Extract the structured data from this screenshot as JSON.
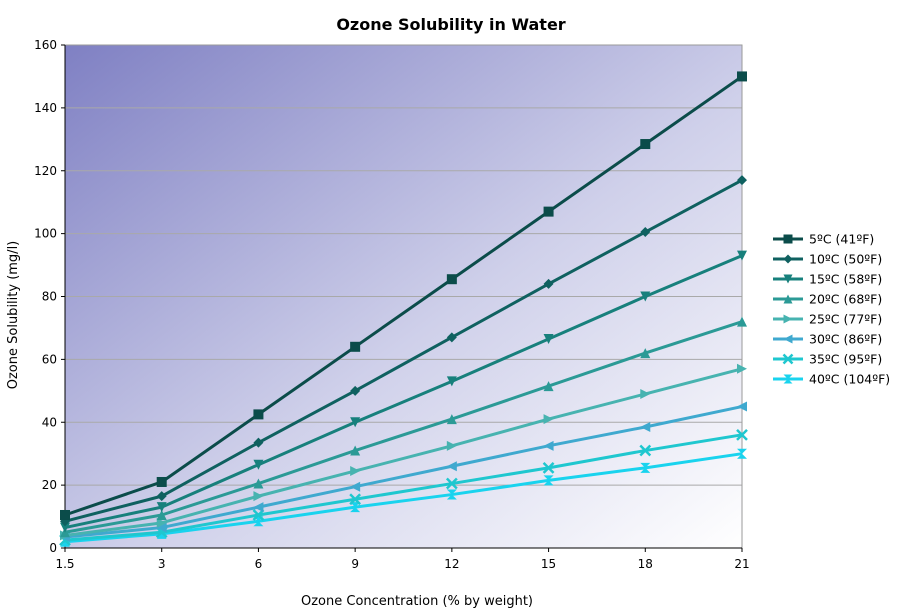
{
  "chart_data": {
    "type": "line",
    "title": "Ozone Solubility in Water",
    "xlabel": "Ozone Concentration (% by weight)",
    "ylabel": "Ozone Solubility (mg/l)",
    "categories": [
      "1.5",
      "3",
      "6",
      "9",
      "12",
      "15",
      "18",
      "21"
    ],
    "ylim": [
      0,
      160
    ],
    "yticks": [
      0,
      20,
      40,
      60,
      80,
      100,
      120,
      140,
      160
    ],
    "grid": true,
    "legend_position": "right",
    "background": {
      "top_left": "#7f80c3",
      "bottom_right": "#ffffff"
    },
    "series": [
      {
        "name": "5ºC (41ºF)",
        "color": "#0b4c4a",
        "marker": "square",
        "values": [
          10.5,
          21,
          42.5,
          64,
          85.5,
          107,
          128.5,
          150
        ]
      },
      {
        "name": "10ºC (50ºF)",
        "color": "#0f6160",
        "marker": "diamond",
        "values": [
          8.5,
          16.5,
          33.5,
          50,
          67,
          84,
          100.5,
          117
        ]
      },
      {
        "name": "15ºC (58ºF)",
        "color": "#17807c",
        "marker": "triangle-down",
        "values": [
          6.5,
          13,
          26.5,
          40,
          53,
          66.5,
          80,
          93
        ]
      },
      {
        "name": "20ºC (68ºF)",
        "color": "#2b9a96",
        "marker": "triangle-up",
        "values": [
          5,
          10.5,
          20.5,
          31,
          41,
          51.5,
          62,
          72
        ]
      },
      {
        "name": "25ºC (77ºF)",
        "color": "#47b3b0",
        "marker": "triangle-right",
        "values": [
          4,
          8,
          16.5,
          24.5,
          32.5,
          41,
          49,
          57
        ]
      },
      {
        "name": "30ºC (86ºF)",
        "color": "#3fa9cf",
        "marker": "triangle-left",
        "values": [
          3.5,
          6.5,
          13,
          19.5,
          26,
          32.5,
          38.5,
          45
        ]
      },
      {
        "name": "35ºC (95ºF)",
        "color": "#1fc7cf",
        "marker": "x",
        "values": [
          2.5,
          5,
          10.5,
          15.5,
          20.5,
          25.5,
          31,
          36
        ]
      },
      {
        "name": "40ºC (104ºF)",
        "color": "#19d3ee",
        "marker": "hourglass",
        "values": [
          2,
          4.5,
          8.5,
          13,
          17,
          21.5,
          25.5,
          30
        ]
      }
    ]
  }
}
